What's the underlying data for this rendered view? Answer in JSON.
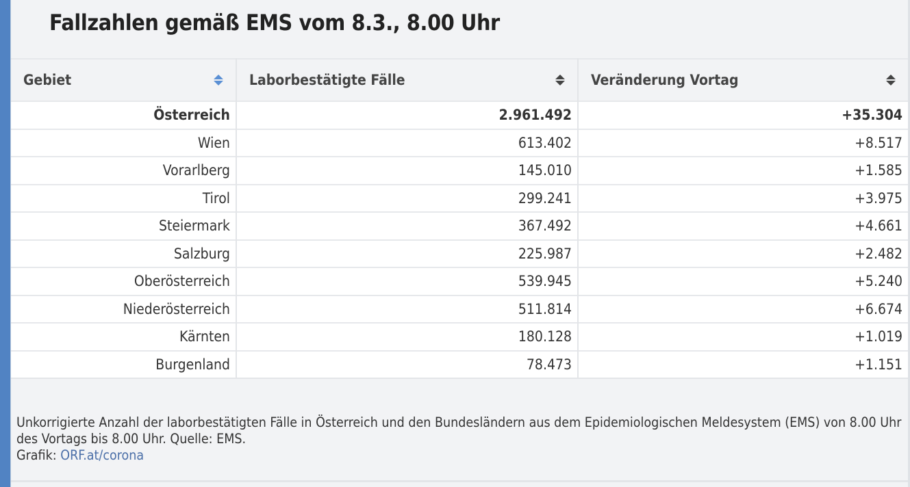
{
  "title": "Fallzahlen gemäß EMS vom 8.3., 8.00 Uhr",
  "table": {
    "headers": [
      "Gebiet",
      "Laborbestätigte Fälle",
      "Veränderung Vortag"
    ],
    "rows": [
      {
        "region": "Österreich",
        "cases": "2.961.492",
        "change": "+35.304"
      },
      {
        "region": "Wien",
        "cases": "613.402",
        "change": "+8.517"
      },
      {
        "region": "Vorarlberg",
        "cases": "145.010",
        "change": "+1.585"
      },
      {
        "region": "Tirol",
        "cases": "299.241",
        "change": "+3.975"
      },
      {
        "region": "Steiermark",
        "cases": "367.492",
        "change": "+4.661"
      },
      {
        "region": "Salzburg",
        "cases": "225.987",
        "change": "+2.482"
      },
      {
        "region": "Oberösterreich",
        "cases": "539.945",
        "change": "+5.240"
      },
      {
        "region": "Niederösterreich",
        "cases": "511.814",
        "change": "+6.674"
      },
      {
        "region": "Kärnten",
        "cases": "180.128",
        "change": "+1.019"
      },
      {
        "region": "Burgenland",
        "cases": "78.473",
        "change": "+1.151"
      }
    ]
  },
  "footer": {
    "note": "Unkorrigierte Anzahl der laborbestätigten Fälle in Österreich und den Bundesländern aus dem Epidemiologischen Meldesystem (EMS) von 8.00 Uhr des Vortags bis 8.00 Uhr. Quelle: EMS.",
    "credit_label": "Grafik: ",
    "credit_link": "ORF.at/corona"
  },
  "colors": {
    "accent": "#5183c3",
    "sort_active": "#5a8fd4",
    "link": "#4b6fa8"
  },
  "icons": {
    "sort": "sort-up-down-icon"
  }
}
